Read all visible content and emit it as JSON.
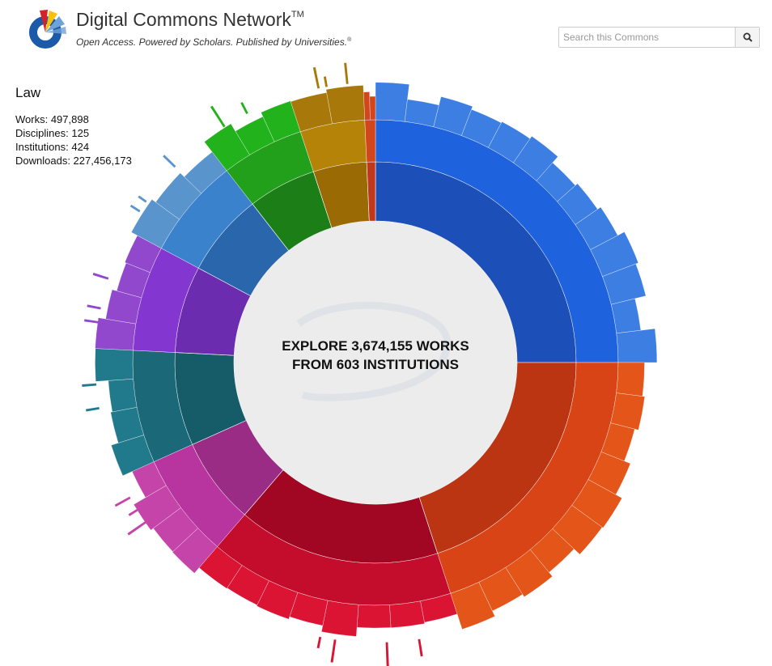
{
  "header": {
    "title": "Digital Commons Network",
    "trademark": "TM",
    "tagline": "Open Access. Powered by Scholars. Published by Universities.",
    "tagline_mark": "®"
  },
  "search": {
    "placeholder": "Search this Commons",
    "value": "",
    "icon": "search-icon"
  },
  "info_panel": {
    "title": "Law",
    "stats": [
      {
        "label": "Works:",
        "value": "497,898"
      },
      {
        "label": "Disciplines:",
        "value": "125"
      },
      {
        "label": "Institutions:",
        "value": "424"
      },
      {
        "label": "Downloads:",
        "value": "227,456,173"
      }
    ]
  },
  "center": {
    "line1": "EXPLORE 3,674,155 WORKS",
    "line2": "FROM 603 INSTITUTIONS"
  },
  "sunburst": {
    "segments": [
      {
        "name": "sector-blue",
        "share": 0.25,
        "inner": "#1d4fb8",
        "middle": "#1f62dd",
        "outer": "#3d7ee3"
      },
      {
        "name": "sector-orange",
        "share": 0.2,
        "inner": "#bb3513",
        "middle": "#d84416",
        "outer": "#e45519"
      },
      {
        "name": "sector-red",
        "share": 0.163,
        "inner": "#a10722",
        "middle": "#c40c2c",
        "outer": "#dc1434"
      },
      {
        "name": "sector-magenta",
        "share": 0.07,
        "inner": "#9a2c86",
        "middle": "#b8359f",
        "outer": "#c544a9"
      },
      {
        "name": "sector-teal",
        "share": 0.075,
        "inner": "#155c68",
        "middle": "#1a6878",
        "outer": "#21798c"
      },
      {
        "name": "sector-purple",
        "share": 0.07,
        "inner": "#6b2cb0",
        "middle": "#8336d0",
        "outer": "#9148cc"
      },
      {
        "name": "sector-steel-blue",
        "share": 0.067,
        "inner": "#2a66ac",
        "middle": "#3a82cc",
        "outer": "#5a94cc"
      },
      {
        "name": "sector-green",
        "share": 0.055,
        "inner": "#1c7e17",
        "middle": "#22a01c",
        "outer": "#22b21c"
      },
      {
        "name": "sector-gold",
        "share": 0.043,
        "inner": "#9a6a05",
        "middle": "#b48308",
        "outer": "#a8780a"
      },
      {
        "name": "sector-rust",
        "share": 0.007,
        "inner": "#c0381c",
        "middle": "#d2461e",
        "outer": "#d2461e"
      }
    ],
    "center_color": "#ececec"
  },
  "colors": {
    "logo_blue": "#1a5aa8",
    "logo_red": "#d2232a",
    "logo_yellow": "#f4c20d",
    "logo_lightblue": "#6ea3d8"
  }
}
